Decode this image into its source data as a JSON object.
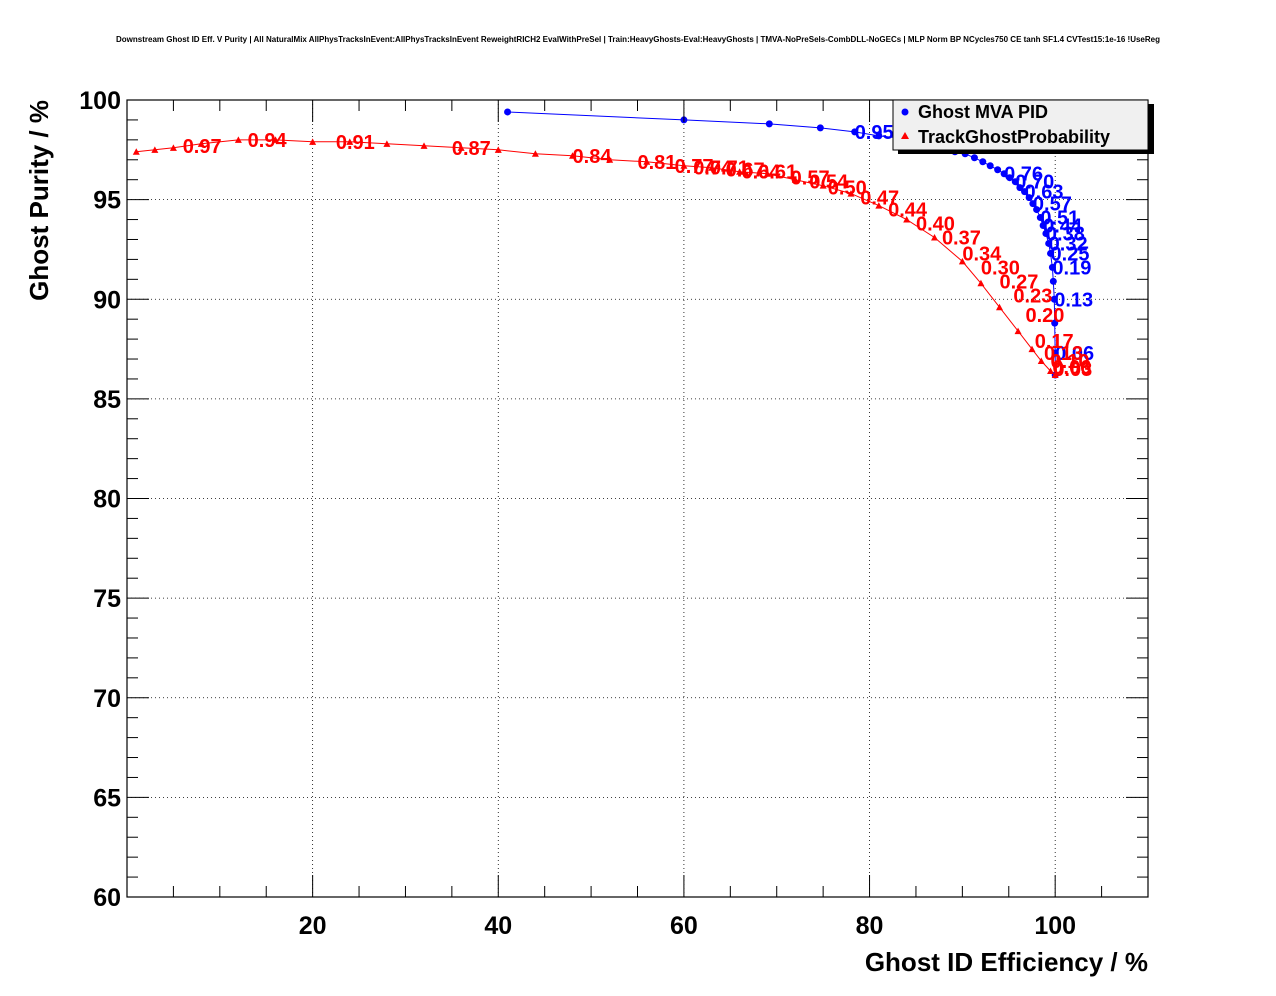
{
  "chart_data": {
    "type": "scatter",
    "title": "Downstream Ghost ID Eff. V Purity | All NaturalMix AllPhysTracksInEvent:AllPhysTracksInEvent ReweightRICH2 EvalWithPreSel | Train:HeavyGhosts-Eval:HeavyGhosts | TMVA-NoPreSels-CombDLL-NoGECs | MLP Norm BP NCycles750 CE tanh SF1.4 CVTest15:1e-16 !UseReg",
    "xlabel": "Ghost ID Efficiency / %",
    "ylabel": "Ghost Purity / %",
    "xlim": [
      0,
      110
    ],
    "ylim": [
      60,
      100
    ],
    "x_ticks": [
      "20",
      "40",
      "60",
      "80",
      "100"
    ],
    "y_ticks": [
      "60",
      "65",
      "70",
      "75",
      "80",
      "85",
      "90",
      "95",
      "100"
    ],
    "grid": true,
    "legend_position": "top-right",
    "series": [
      {
        "name": "Ghost MVA PID",
        "color": "#0000ff",
        "marker": "circle",
        "points": [
          [
            41.0,
            99.4
          ],
          [
            60.0,
            99.0
          ],
          [
            69.2,
            98.8
          ],
          [
            74.7,
            98.6
          ],
          [
            78.4,
            98.4
          ],
          [
            81.0,
            98.2
          ],
          [
            83.2,
            98.1
          ],
          [
            85.0,
            97.9
          ],
          [
            86.6,
            97.8
          ],
          [
            88.0,
            97.6
          ],
          [
            89.2,
            97.4
          ],
          [
            90.3,
            97.3
          ],
          [
            91.3,
            97.1
          ],
          [
            92.2,
            96.9
          ],
          [
            93.0,
            96.7
          ],
          [
            93.8,
            96.5
          ],
          [
            94.5,
            96.3
          ],
          [
            95.1,
            96.1
          ],
          [
            95.7,
            95.9
          ],
          [
            96.2,
            95.6
          ],
          [
            96.7,
            95.4
          ],
          [
            97.2,
            95.1
          ],
          [
            97.6,
            94.8
          ],
          [
            98.0,
            94.5
          ],
          [
            98.4,
            94.1
          ],
          [
            98.7,
            93.7
          ],
          [
            99.0,
            93.3
          ],
          [
            99.3,
            92.8
          ],
          [
            99.5,
            92.3
          ],
          [
            99.7,
            91.6
          ],
          [
            99.8,
            90.9
          ],
          [
            99.9,
            90.0
          ],
          [
            99.95,
            88.8
          ],
          [
            100.0,
            87.3
          ],
          [
            100.0,
            86.2
          ]
        ],
        "point_labels": [
          {
            "text": "0.95",
            "x": 78.4,
            "y": 98.4
          },
          {
            "text": "0.76",
            "x": 94.5,
            "y": 96.3
          },
          {
            "text": "0.70",
            "x": 95.7,
            "y": 95.9
          },
          {
            "text": "0.63",
            "x": 96.7,
            "y": 95.4
          },
          {
            "text": "0.57",
            "x": 97.6,
            "y": 94.8
          },
          {
            "text": "0.51",
            "x": 98.4,
            "y": 94.1
          },
          {
            "text": "0.44",
            "x": 98.7,
            "y": 93.7
          },
          {
            "text": "0.38",
            "x": 99.0,
            "y": 93.3
          },
          {
            "text": "0.32",
            "x": 99.3,
            "y": 92.8
          },
          {
            "text": "0.25",
            "x": 99.5,
            "y": 92.3
          },
          {
            "text": "0.19",
            "x": 99.7,
            "y": 91.6
          },
          {
            "text": "0.13",
            "x": 99.9,
            "y": 90.0
          },
          {
            "text": "0.06",
            "x": 100.0,
            "y": 87.3
          }
        ]
      },
      {
        "name": "TrackGhostProbability",
        "color": "#ff0000",
        "marker": "triangle",
        "points": [
          [
            1.0,
            97.4
          ],
          [
            3.0,
            97.5
          ],
          [
            5.0,
            97.6
          ],
          [
            8.0,
            97.8
          ],
          [
            12.0,
            98.0
          ],
          [
            16.0,
            98.0
          ],
          [
            20.0,
            97.9
          ],
          [
            24.0,
            97.9
          ],
          [
            28.0,
            97.8
          ],
          [
            32.0,
            97.7
          ],
          [
            36.0,
            97.6
          ],
          [
            40.0,
            97.5
          ],
          [
            44.0,
            97.3
          ],
          [
            48.0,
            97.2
          ],
          [
            52.0,
            97.0
          ],
          [
            56.0,
            96.9
          ],
          [
            60.0,
            96.7
          ],
          [
            63.0,
            96.6
          ],
          [
            66.0,
            96.4
          ],
          [
            69.0,
            96.3
          ],
          [
            72.0,
            96.0
          ],
          [
            75.0,
            95.7
          ],
          [
            78.0,
            95.3
          ],
          [
            81.0,
            94.7
          ],
          [
            84.0,
            94.0
          ],
          [
            87.0,
            93.1
          ],
          [
            90.0,
            91.9
          ],
          [
            92.0,
            90.8
          ],
          [
            94.0,
            89.6
          ],
          [
            96.0,
            88.4
          ],
          [
            97.5,
            87.5
          ],
          [
            98.5,
            86.9
          ],
          [
            99.5,
            86.4
          ],
          [
            100.0,
            86.2
          ]
        ],
        "point_labels": [
          {
            "text": "0.97",
            "x": 6.0,
            "y": 97.7
          },
          {
            "text": "0.94",
            "x": 13.0,
            "y": 98.0
          },
          {
            "text": "0.91",
            "x": 22.5,
            "y": 97.9
          },
          {
            "text": "0.87",
            "x": 35.0,
            "y": 97.6
          },
          {
            "text": "0.84",
            "x": 48.0,
            "y": 97.2
          },
          {
            "text": "0.81",
            "x": 55.0,
            "y": 96.9
          },
          {
            "text": "0.77",
            "x": 59.0,
            "y": 96.7
          },
          {
            "text": "0.74",
            "x": 61.0,
            "y": 96.6
          },
          {
            "text": "0.71",
            "x": 62.8,
            "y": 96.6
          },
          {
            "text": "0.67",
            "x": 64.5,
            "y": 96.5
          },
          {
            "text": "0.64",
            "x": 66.2,
            "y": 96.4
          },
          {
            "text": "0.61",
            "x": 68.0,
            "y": 96.4
          },
          {
            "text": "0.57",
            "x": 71.5,
            "y": 96.1
          },
          {
            "text": "0.54",
            "x": 73.5,
            "y": 95.9
          },
          {
            "text": "0.50",
            "x": 75.5,
            "y": 95.6
          },
          {
            "text": "0.47",
            "x": 79.0,
            "y": 95.1
          },
          {
            "text": "0.44",
            "x": 82.0,
            "y": 94.5
          },
          {
            "text": "0.40",
            "x": 85.0,
            "y": 93.8
          },
          {
            "text": "0.37",
            "x": 87.8,
            "y": 93.1
          },
          {
            "text": "0.34",
            "x": 90.0,
            "y": 92.3
          },
          {
            "text": "0.30",
            "x": 92.0,
            "y": 91.6
          },
          {
            "text": "0.27",
            "x": 94.0,
            "y": 90.9
          },
          {
            "text": "0.23",
            "x": 95.5,
            "y": 90.2
          },
          {
            "text": "0.20",
            "x": 96.8,
            "y": 89.2
          },
          {
            "text": "0.17",
            "x": 97.8,
            "y": 87.9
          },
          {
            "text": "0.13",
            "x": 98.8,
            "y": 87.3
          },
          {
            "text": "0.10",
            "x": 99.5,
            "y": 86.9
          },
          {
            "text": "0.06",
            "x": 99.7,
            "y": 86.6
          },
          {
            "text": "0.03",
            "x": 99.8,
            "y": 86.5
          }
        ]
      }
    ]
  }
}
